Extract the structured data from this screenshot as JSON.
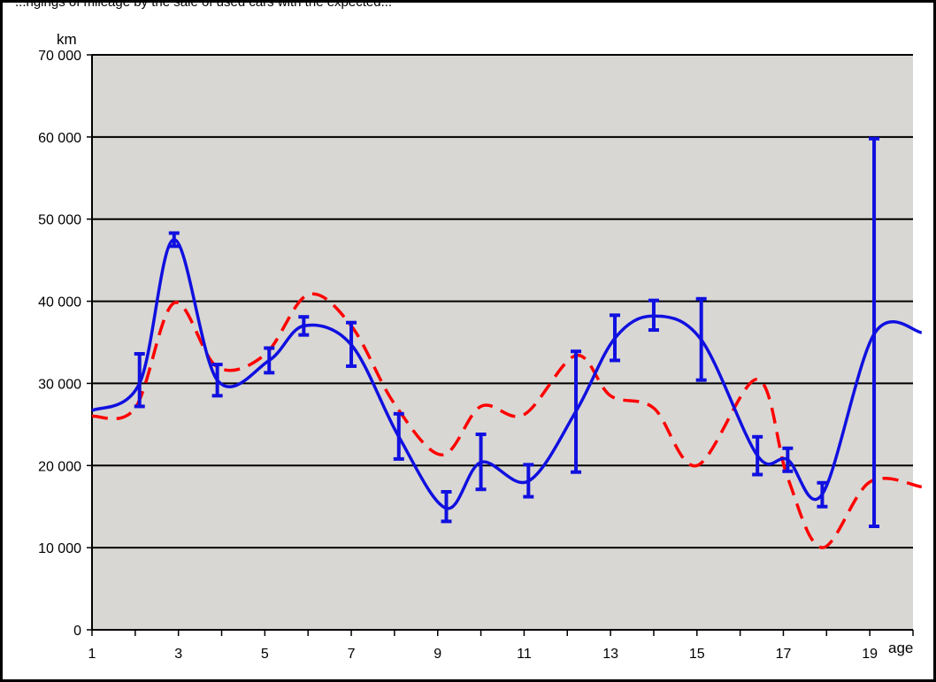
{
  "header": {
    "text": "...ngings of mileage by the sale of used cars with the expected..."
  },
  "chart_data": {
    "type": "line",
    "title": "",
    "xlabel": "age",
    "ylabel": "km",
    "xlim": [
      1,
      20
    ],
    "ylim": [
      0,
      70000
    ],
    "x_ticks": [
      "1",
      "3",
      "5",
      "7",
      "9",
      "11",
      "13",
      "15",
      "17",
      "19"
    ],
    "y_ticks": [
      "0",
      "10 000",
      "20 000",
      "30 000",
      "40 000",
      "50 000",
      "60 000",
      "70 000"
    ],
    "grid": true,
    "legend": "none",
    "colors": {
      "plot_bg": "#d9d7d3",
      "observed": "#1010e0",
      "expected": "#ff0000",
      "grid": "#000000"
    },
    "series": [
      {
        "style": "solid",
        "points": [
          {
            "x": 1.0,
            "y": 26700
          },
          {
            "x": 2.1,
            "y": 30000,
            "lo": 27200,
            "hi": 33600
          },
          {
            "x": 2.9,
            "y": 47500,
            "lo": 46700,
            "hi": 48300
          },
          {
            "x": 3.9,
            "y": 30400,
            "lo": 28500,
            "hi": 32300
          },
          {
            "x": 5.1,
            "y": 32800,
            "lo": 31300,
            "hi": 34300
          },
          {
            "x": 5.9,
            "y": 37000,
            "lo": 35900,
            "hi": 38100
          },
          {
            "x": 7.0,
            "y": 34700,
            "lo": 32100,
            "hi": 37400
          },
          {
            "x": 8.1,
            "y": 23500,
            "lo": 20800,
            "hi": 26300
          },
          {
            "x": 9.2,
            "y": 14800,
            "lo": 13200,
            "hi": 16800
          },
          {
            "x": 10.0,
            "y": 20400,
            "lo": 17100,
            "hi": 23800
          },
          {
            "x": 11.1,
            "y": 18100,
            "lo": 16200,
            "hi": 20100
          },
          {
            "x": 12.2,
            "y": 26600,
            "lo": 19200,
            "hi": 33900
          },
          {
            "x": 13.1,
            "y": 35500,
            "lo": 32800,
            "hi": 38300
          },
          {
            "x": 14.0,
            "y": 38200,
            "lo": 36500,
            "hi": 40100
          },
          {
            "x": 15.1,
            "y": 35300,
            "lo": 30400,
            "hi": 40300
          },
          {
            "x": 16.4,
            "y": 21200,
            "lo": 18900,
            "hi": 23500
          },
          {
            "x": 17.1,
            "y": 20700,
            "lo": 19300,
            "hi": 22100
          },
          {
            "x": 17.9,
            "y": 16500,
            "lo": 15000,
            "hi": 17900
          },
          {
            "x": 19.1,
            "y": 36000,
            "lo": 12600,
            "hi": 59800
          },
          {
            "x": 20.2,
            "y": 36200
          }
        ]
      },
      {
        "style": "dashed",
        "points": [
          {
            "x": 1.0,
            "y": 26000
          },
          {
            "x": 2.0,
            "y": 27000
          },
          {
            "x": 2.9,
            "y": 39800
          },
          {
            "x": 3.9,
            "y": 32000
          },
          {
            "x": 5.0,
            "y": 33500
          },
          {
            "x": 6.0,
            "y": 40800
          },
          {
            "x": 7.0,
            "y": 37000
          },
          {
            "x": 8.0,
            "y": 27500
          },
          {
            "x": 9.1,
            "y": 21300
          },
          {
            "x": 10.0,
            "y": 27200
          },
          {
            "x": 11.0,
            "y": 26200
          },
          {
            "x": 12.2,
            "y": 33400
          },
          {
            "x": 13.0,
            "y": 28500
          },
          {
            "x": 14.0,
            "y": 27000
          },
          {
            "x": 15.0,
            "y": 20000
          },
          {
            "x": 16.4,
            "y": 30500
          },
          {
            "x": 17.1,
            "y": 18500
          },
          {
            "x": 17.9,
            "y": 10000
          },
          {
            "x": 19.0,
            "y": 18000
          },
          {
            "x": 20.2,
            "y": 17400
          }
        ]
      }
    ]
  }
}
